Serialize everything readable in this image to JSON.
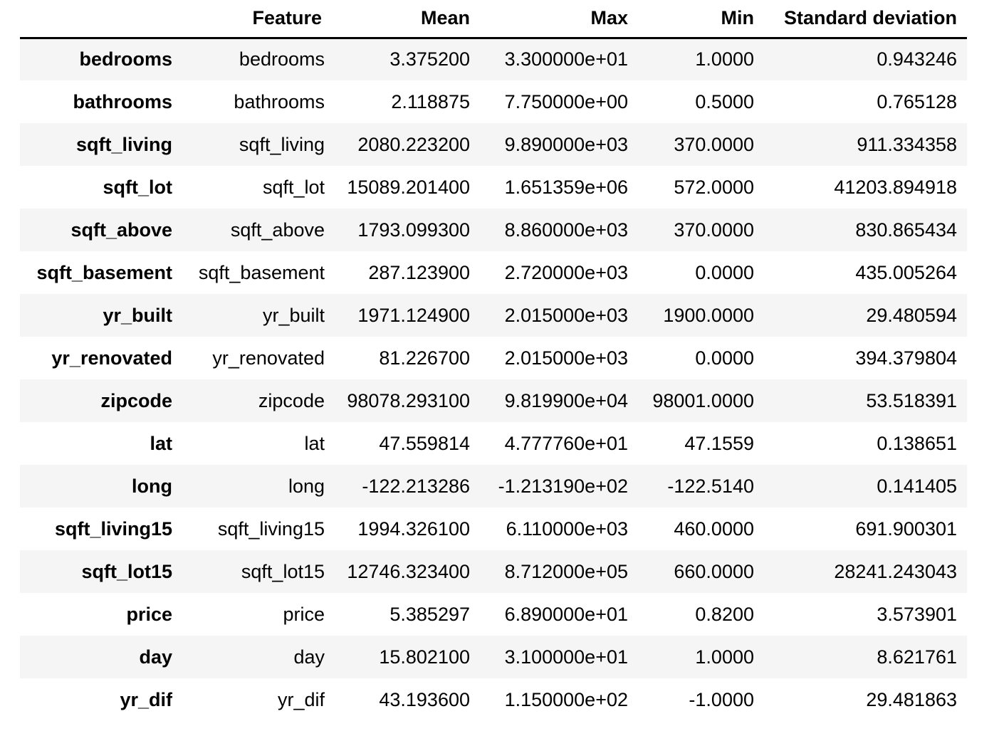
{
  "table": {
    "columns": {
      "index": "",
      "feature": "Feature",
      "mean": "Mean",
      "max": "Max",
      "min": "Min",
      "std": "Standard deviation"
    },
    "rows": [
      {
        "index": "bedrooms",
        "feature": "bedrooms",
        "mean": "3.375200",
        "max": "3.300000e+01",
        "min": "1.0000",
        "std": "0.943246"
      },
      {
        "index": "bathrooms",
        "feature": "bathrooms",
        "mean": "2.118875",
        "max": "7.750000e+00",
        "min": "0.5000",
        "std": "0.765128"
      },
      {
        "index": "sqft_living",
        "feature": "sqft_living",
        "mean": "2080.223200",
        "max": "9.890000e+03",
        "min": "370.0000",
        "std": "911.334358"
      },
      {
        "index": "sqft_lot",
        "feature": "sqft_lot",
        "mean": "15089.201400",
        "max": "1.651359e+06",
        "min": "572.0000",
        "std": "41203.894918"
      },
      {
        "index": "sqft_above",
        "feature": "sqft_above",
        "mean": "1793.099300",
        "max": "8.860000e+03",
        "min": "370.0000",
        "std": "830.865434"
      },
      {
        "index": "sqft_basement",
        "feature": "sqft_basement",
        "mean": "287.123900",
        "max": "2.720000e+03",
        "min": "0.0000",
        "std": "435.005264"
      },
      {
        "index": "yr_built",
        "feature": "yr_built",
        "mean": "1971.124900",
        "max": "2.015000e+03",
        "min": "1900.0000",
        "std": "29.480594"
      },
      {
        "index": "yr_renovated",
        "feature": "yr_renovated",
        "mean": "81.226700",
        "max": "2.015000e+03",
        "min": "0.0000",
        "std": "394.379804"
      },
      {
        "index": "zipcode",
        "feature": "zipcode",
        "mean": "98078.293100",
        "max": "9.819900e+04",
        "min": "98001.0000",
        "std": "53.518391"
      },
      {
        "index": "lat",
        "feature": "lat",
        "mean": "47.559814",
        "max": "4.777760e+01",
        "min": "47.1559",
        "std": "0.138651"
      },
      {
        "index": "long",
        "feature": "long",
        "mean": "-122.213286",
        "max": "-1.213190e+02",
        "min": "-122.5140",
        "std": "0.141405"
      },
      {
        "index": "sqft_living15",
        "feature": "sqft_living15",
        "mean": "1994.326100",
        "max": "6.110000e+03",
        "min": "460.0000",
        "std": "691.900301"
      },
      {
        "index": "sqft_lot15",
        "feature": "sqft_lot15",
        "mean": "12746.323400",
        "max": "8.712000e+05",
        "min": "660.0000",
        "std": "28241.243043"
      },
      {
        "index": "price",
        "feature": "price",
        "mean": "5.385297",
        "max": "6.890000e+01",
        "min": "0.8200",
        "std": "3.573901"
      },
      {
        "index": "day",
        "feature": "day",
        "mean": "15.802100",
        "max": "3.100000e+01",
        "min": "1.0000",
        "std": "8.621761"
      },
      {
        "index": "yr_dif",
        "feature": "yr_dif",
        "mean": "43.193600",
        "max": "1.150000e+02",
        "min": "-1.0000",
        "std": "29.481863"
      }
    ]
  },
  "colors": {
    "stripe": "#f5f5f5",
    "background": "#ffffff",
    "header_rule": "#000000"
  }
}
